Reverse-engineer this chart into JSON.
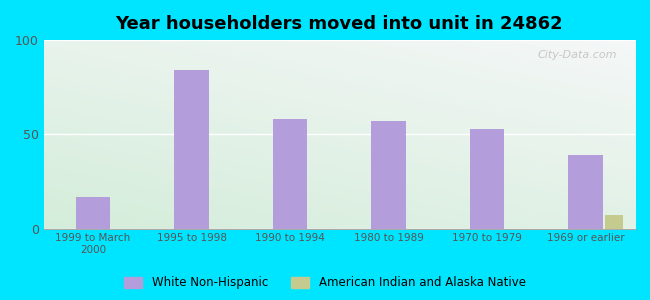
{
  "title": "Year householders moved into unit in 24862",
  "categories": [
    "1999 to March\n2000",
    "1995 to 1998",
    "1990 to 1994",
    "1980 to 1989",
    "1970 to 1979",
    "1969 or earlier"
  ],
  "white_non_hispanic": [
    17,
    84,
    58,
    57,
    53,
    39
  ],
  "american_indian": [
    0,
    0,
    0,
    0,
    0,
    7
  ],
  "bar_color_white": "#b39ddb",
  "bar_color_indian": "#c5ca8e",
  "bg_outer": "#00e5ff",
  "ylim": [
    0,
    100
  ],
  "yticks": [
    0,
    50,
    100
  ],
  "bar_width": 0.35,
  "indian_bar_width": 0.18,
  "legend_white": "White Non-Hispanic",
  "legend_indian": "American Indian and Alaska Native",
  "watermark": "City-Data.com"
}
